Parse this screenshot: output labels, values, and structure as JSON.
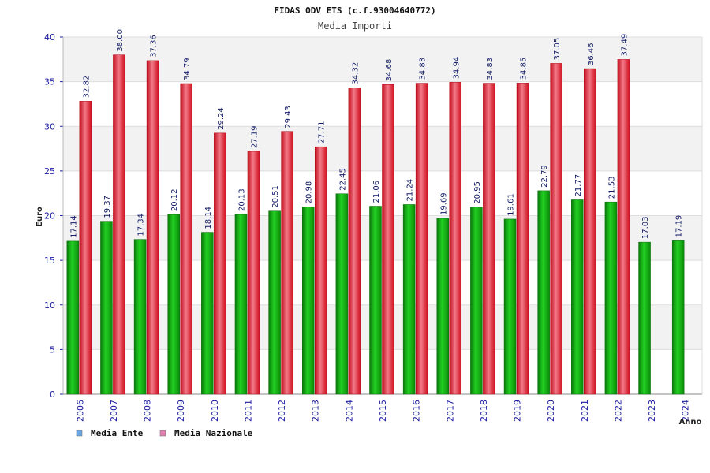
{
  "chart_data": {
    "type": "bar",
    "title": "FIDAS ODV ETS (c.f.93004640772)",
    "subtitle": "Media Importi",
    "xlabel": "Anno",
    "ylabel": "Euro",
    "ylim": [
      0,
      40
    ],
    "yticks": [
      0,
      5,
      10,
      15,
      20,
      25,
      30,
      35,
      40
    ],
    "grid": true,
    "legend_position": "bottom-left",
    "categories": [
      "2006",
      "2007",
      "2008",
      "2009",
      "2010",
      "2011",
      "2012",
      "2013",
      "2014",
      "2015",
      "2016",
      "2017",
      "2018",
      "2019",
      "2020",
      "2021",
      "2022",
      "2023",
      "2024"
    ],
    "series": [
      {
        "name": "Media Ente",
        "color": "#18b818",
        "legend_color": "#6aa8e8",
        "values": [
          17.14,
          19.37,
          17.34,
          20.12,
          18.14,
          20.13,
          20.51,
          20.98,
          22.45,
          21.06,
          21.24,
          19.69,
          20.95,
          19.61,
          22.79,
          21.77,
          21.53,
          17.03,
          17.19
        ],
        "labels": [
          "17.14",
          "19.37",
          "17.34",
          "20.12",
          "18.14",
          "20.13",
          "20.51",
          "20.98",
          "22.45",
          "21.06",
          "21.24",
          "19.69",
          "20.95",
          "19.61",
          "22.79",
          "21.77",
          "21.53",
          "17.03",
          "17.19"
        ]
      },
      {
        "name": "Media Nazionale",
        "color": "#e82030",
        "legend_color": "#e080b0",
        "values": [
          32.82,
          38.0,
          37.36,
          34.79,
          29.24,
          27.19,
          29.43,
          27.71,
          34.32,
          34.68,
          34.83,
          34.94,
          34.83,
          34.85,
          37.05,
          36.46,
          37.49,
          null,
          null
        ],
        "labels": [
          "32.82",
          "38.00",
          "37.36",
          "34.79",
          "29.24",
          "27.19",
          "29.43",
          "27.71",
          "34.32",
          "34.68",
          "34.83",
          "34.94",
          "34.83",
          "34.85",
          "37.05",
          "36.46",
          "37.49",
          "",
          ""
        ]
      }
    ]
  }
}
